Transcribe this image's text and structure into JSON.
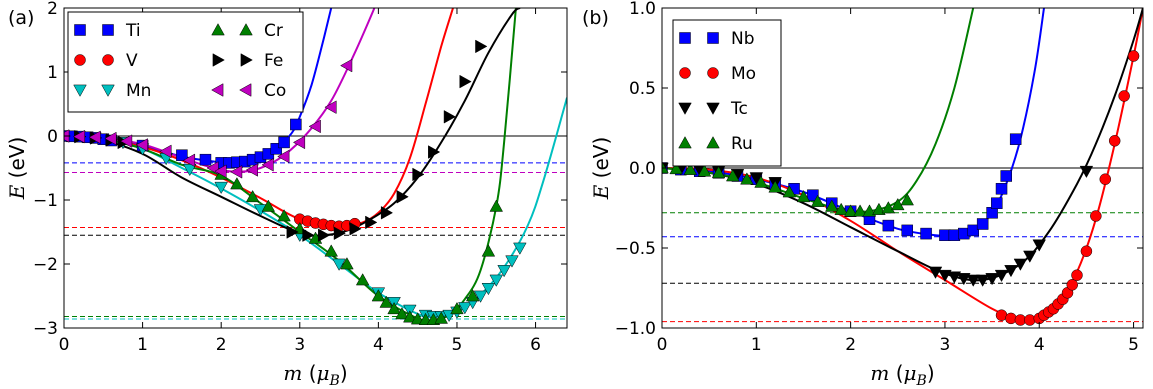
{
  "chart_data": [
    {
      "panel_label": "(a)",
      "type": "scatter",
      "xlabel": "m (μ_B)",
      "ylabel": "E (eV)",
      "xlim": [
        0,
        6.4
      ],
      "ylim": [
        -3,
        2
      ],
      "xticks": [
        0,
        1,
        2,
        3,
        4,
        5,
        6
      ],
      "yticks": [
        -3,
        -2,
        -1,
        0,
        1,
        2
      ],
      "grid": false,
      "legend_position": "top-left",
      "zero_line": true,
      "series": [
        {
          "name": "Ti",
          "color": "#0000ff",
          "marker": "square",
          "x": [
            0.0,
            0.1,
            0.2,
            0.3,
            0.4,
            0.5,
            0.6,
            1.0,
            1.5,
            1.8,
            2.0,
            2.1,
            2.2,
            2.3,
            2.4,
            2.5,
            2.6,
            2.7,
            2.8,
            2.95
          ],
          "y": [
            0.0,
            -0.005,
            -0.01,
            -0.02,
            -0.03,
            -0.05,
            -0.07,
            -0.15,
            -0.3,
            -0.37,
            -0.42,
            -0.42,
            -0.41,
            -0.4,
            -0.37,
            -0.33,
            -0.28,
            -0.2,
            -0.1,
            0.18
          ],
          "fit_x": [
            0.0,
            0.5,
            1.0,
            1.5,
            1.8,
            2.1,
            2.4,
            2.7,
            2.9,
            3.0,
            3.15,
            3.3,
            3.4
          ],
          "fit_y": [
            0.0,
            -0.04,
            -0.15,
            -0.32,
            -0.38,
            -0.42,
            -0.37,
            -0.2,
            0.05,
            0.3,
            0.8,
            1.5,
            2.0
          ],
          "ref_energy": -0.42
        },
        {
          "name": "V",
          "color": "#ff0000",
          "marker": "circle",
          "x": [
            3.0,
            3.1,
            3.2,
            3.3,
            3.4,
            3.5,
            3.6,
            3.7
          ],
          "y": [
            -1.3,
            -1.33,
            -1.36,
            -1.38,
            -1.4,
            -1.41,
            -1.4,
            -1.37
          ],
          "fit_x": [
            0.0,
            0.5,
            1.0,
            1.5,
            2.0,
            2.5,
            3.0,
            3.5,
            3.8,
            4.0,
            4.2,
            4.4,
            4.6,
            4.8,
            4.95
          ],
          "fit_y": [
            0.0,
            -0.04,
            -0.17,
            -0.38,
            -0.65,
            -0.97,
            -1.3,
            -1.42,
            -1.35,
            -1.2,
            -0.9,
            -0.35,
            0.5,
            1.4,
            2.0
          ],
          "ref_energy": -1.43
        },
        {
          "name": "Mn",
          "color": "#00bfbf",
          "marker": "triangle-down",
          "x": [
            0.75,
            1.0,
            1.3,
            1.6,
            2.0,
            2.5,
            3.0,
            3.5,
            4.0,
            4.2,
            4.4,
            4.6,
            4.7,
            4.8,
            4.9,
            5.0,
            5.1,
            5.2,
            5.3,
            5.4,
            5.5,
            5.6,
            5.7,
            5.8
          ],
          "y": [
            -0.1,
            -0.2,
            -0.35,
            -0.52,
            -0.8,
            -1.15,
            -1.55,
            -2.0,
            -2.45,
            -2.6,
            -2.72,
            -2.8,
            -2.82,
            -2.82,
            -2.8,
            -2.75,
            -2.68,
            -2.6,
            -2.5,
            -2.38,
            -2.25,
            -2.1,
            -1.95,
            -1.75
          ],
          "fit_x": [
            0.0,
            0.5,
            1.0,
            1.5,
            2.0,
            2.5,
            3.0,
            3.5,
            4.0,
            4.5,
            4.7,
            5.0,
            5.3,
            5.6,
            5.9,
            6.1,
            6.4
          ],
          "fit_y": [
            0.0,
            -0.05,
            -0.2,
            -0.5,
            -0.82,
            -1.17,
            -1.55,
            -2.0,
            -2.45,
            -2.78,
            -2.83,
            -2.75,
            -2.48,
            -2.05,
            -1.4,
            -0.7,
            0.6
          ],
          "ref_energy": -2.86
        },
        {
          "name": "Cr",
          "color": "#007f00",
          "marker": "triangle-up",
          "x": [
            2.0,
            2.2,
            2.4,
            2.6,
            2.8,
            3.0,
            3.2,
            3.4,
            3.6,
            3.8,
            4.0,
            4.1,
            4.2,
            4.3,
            4.4,
            4.5,
            4.6,
            4.7,
            4.8,
            5.0,
            5.2,
            5.4,
            5.5
          ],
          "y": [
            -0.6,
            -0.75,
            -0.95,
            -1.1,
            -1.25,
            -1.45,
            -1.6,
            -1.8,
            -2.0,
            -2.25,
            -2.5,
            -2.6,
            -2.7,
            -2.78,
            -2.83,
            -2.86,
            -2.87,
            -2.87,
            -2.85,
            -2.7,
            -2.5,
            -1.8,
            -1.1
          ],
          "fit_x": [
            0.0,
            0.5,
            1.0,
            1.5,
            2.0,
            2.5,
            3.0,
            3.5,
            4.0,
            4.5,
            4.7,
            4.9,
            5.1,
            5.3,
            5.5,
            5.6,
            5.75
          ],
          "fit_y": [
            0.0,
            -0.05,
            -0.2,
            -0.45,
            -0.62,
            -1.05,
            -1.5,
            -1.95,
            -2.5,
            -2.85,
            -2.87,
            -2.8,
            -2.55,
            -2.1,
            -1.1,
            -0.1,
            2.0
          ],
          "ref_energy": -2.82
        },
        {
          "name": "Fe",
          "color": "#000000",
          "marker": "triangle-right",
          "x": [
            0.0,
            0.2,
            0.4,
            0.6,
            0.75,
            2.9,
            3.1,
            3.3,
            3.5,
            3.7,
            3.9,
            4.1,
            4.3,
            4.5,
            4.7,
            4.9,
            5.1,
            5.3
          ],
          "y": [
            0.0,
            -0.01,
            -0.03,
            -0.06,
            -0.1,
            -1.5,
            -1.55,
            -1.55,
            -1.52,
            -1.45,
            -1.35,
            -1.2,
            -0.95,
            -0.6,
            -0.25,
            0.3,
            0.85,
            1.4
          ],
          "fit_x": [
            0.0,
            0.5,
            1.0,
            1.5,
            2.0,
            2.5,
            3.0,
            3.3,
            3.6,
            3.9,
            4.2,
            4.5,
            4.8,
            5.1,
            5.4,
            5.7,
            5.8
          ],
          "fit_y": [
            0.0,
            -0.07,
            -0.28,
            -0.65,
            -0.95,
            -1.25,
            -1.52,
            -1.55,
            -1.48,
            -1.3,
            -1.05,
            -0.65,
            -0.1,
            0.55,
            1.3,
            1.9,
            2.0
          ],
          "ref_energy": -1.55
        },
        {
          "name": "Co",
          "color": "#bf00bf",
          "marker": "triangle-left",
          "x": [
            0.0,
            0.2,
            0.4,
            0.6,
            0.8,
            1.0,
            1.3,
            1.6,
            1.9,
            2.0,
            2.2,
            2.4,
            2.6,
            2.8,
            3.0,
            3.2,
            3.4,
            3.6
          ],
          "y": [
            0.0,
            -0.01,
            -0.02,
            -0.04,
            -0.08,
            -0.14,
            -0.24,
            -0.38,
            -0.5,
            -0.55,
            -0.56,
            -0.53,
            -0.45,
            -0.32,
            -0.1,
            0.15,
            0.45,
            1.1
          ],
          "fit_x": [
            0.0,
            0.5,
            1.0,
            1.5,
            1.9,
            2.2,
            2.5,
            2.8,
            3.1,
            3.4,
            3.7,
            3.95
          ],
          "fit_y": [
            0.0,
            -0.03,
            -0.13,
            -0.34,
            -0.5,
            -0.56,
            -0.5,
            -0.3,
            0.05,
            0.55,
            1.3,
            2.0
          ],
          "ref_energy": -0.57
        }
      ]
    },
    {
      "panel_label": "(b)",
      "type": "scatter",
      "xlabel": "m (μ_B)",
      "ylabel": "E (eV)",
      "xlim": [
        0,
        5.1
      ],
      "ylim": [
        -1.0,
        1.0
      ],
      "xticks": [
        0,
        1,
        2,
        3,
        4,
        5
      ],
      "yticks": [
        -1.0,
        -0.5,
        0.0,
        0.5,
        1.0
      ],
      "grid": false,
      "legend_position": "top-left",
      "zero_line": true,
      "series": [
        {
          "name": "Nb",
          "color": "#0000ff",
          "marker": "square",
          "x": [
            0.0,
            0.2,
            0.4,
            0.6,
            0.8,
            1.0,
            1.2,
            1.4,
            1.6,
            1.8,
            2.0,
            2.2,
            2.4,
            2.6,
            2.8,
            3.0,
            3.1,
            3.2,
            3.3,
            3.4,
            3.5,
            3.55,
            3.6,
            3.65,
            3.75
          ],
          "y": [
            0.0,
            -0.01,
            -0.02,
            -0.03,
            -0.05,
            -0.07,
            -0.1,
            -0.13,
            -0.17,
            -0.22,
            -0.27,
            -0.32,
            -0.36,
            -0.39,
            -0.41,
            -0.42,
            -0.42,
            -0.41,
            -0.39,
            -0.35,
            -0.28,
            -0.22,
            -0.13,
            -0.05,
            0.18
          ],
          "fit_x": [
            0.0,
            0.5,
            1.0,
            1.5,
            2.0,
            2.5,
            2.9,
            3.1,
            3.3,
            3.5,
            3.65,
            3.8,
            3.95,
            4.05
          ],
          "fit_y": [
            0.0,
            -0.02,
            -0.07,
            -0.15,
            -0.27,
            -0.38,
            -0.42,
            -0.42,
            -0.39,
            -0.28,
            -0.1,
            0.18,
            0.6,
            1.0
          ],
          "ref_energy": -0.43
        },
        {
          "name": "Mo",
          "color": "#ff0000",
          "marker": "circle",
          "x": [
            3.6,
            3.7,
            3.8,
            3.9,
            4.0,
            4.05,
            4.1,
            4.15,
            4.2,
            4.25,
            4.3,
            4.35,
            4.4,
            4.5,
            4.6,
            4.7,
            4.8,
            4.9,
            5.0
          ],
          "y": [
            -0.92,
            -0.94,
            -0.95,
            -0.95,
            -0.94,
            -0.92,
            -0.9,
            -0.88,
            -0.85,
            -0.82,
            -0.78,
            -0.73,
            -0.67,
            -0.52,
            -0.3,
            -0.07,
            0.17,
            0.45,
            0.7
          ],
          "fit_x": [
            0.0,
            0.5,
            1.0,
            1.5,
            2.0,
            2.5,
            3.0,
            3.5,
            3.8,
            4.0,
            4.2,
            4.4,
            4.6,
            4.8,
            5.0,
            5.1
          ],
          "fit_y": [
            0.0,
            -0.01,
            -0.06,
            -0.17,
            -0.33,
            -0.52,
            -0.7,
            -0.88,
            -0.95,
            -0.94,
            -0.85,
            -0.65,
            -0.32,
            0.15,
            0.7,
            1.0
          ],
          "ref_energy": -0.96
        },
        {
          "name": "Tc",
          "color": "#000000",
          "marker": "triangle-down",
          "x": [
            0.0,
            0.2,
            0.4,
            0.6,
            0.8,
            1.0,
            1.2,
            2.9,
            3.0,
            3.1,
            3.2,
            3.3,
            3.4,
            3.5,
            3.6,
            3.7,
            3.8,
            3.9,
            4.0,
            4.5
          ],
          "y": [
            0.0,
            -0.005,
            -0.01,
            -0.02,
            -0.04,
            -0.06,
            -0.09,
            -0.65,
            -0.67,
            -0.68,
            -0.69,
            -0.7,
            -0.7,
            -0.69,
            -0.67,
            -0.64,
            -0.6,
            -0.55,
            -0.48,
            -0.02
          ],
          "fit_x": [
            0.0,
            0.5,
            1.0,
            1.5,
            2.0,
            2.5,
            3.0,
            3.4,
            3.8,
            4.1,
            4.4,
            4.6,
            4.8,
            5.0,
            5.1
          ],
          "fit_y": [
            0.0,
            -0.03,
            -0.1,
            -0.22,
            -0.37,
            -0.52,
            -0.66,
            -0.7,
            -0.6,
            -0.4,
            -0.1,
            0.15,
            0.45,
            0.8,
            1.0
          ],
          "ref_energy": -0.72
        },
        {
          "name": "Ru",
          "color": "#007f00",
          "marker": "triangle-up",
          "x": [
            0.0,
            0.15,
            0.3,
            0.45,
            0.6,
            0.75,
            0.9,
            1.05,
            1.2,
            1.35,
            1.5,
            1.65,
            1.8,
            1.9,
            2.0,
            2.1,
            2.2,
            2.3,
            2.4,
            2.5,
            2.6
          ],
          "y": [
            0.0,
            -0.005,
            -0.01,
            -0.02,
            -0.03,
            -0.05,
            -0.07,
            -0.09,
            -0.12,
            -0.15,
            -0.18,
            -0.21,
            -0.24,
            -0.26,
            -0.27,
            -0.27,
            -0.27,
            -0.26,
            -0.25,
            -0.23,
            -0.2
          ],
          "fit_x": [
            0.0,
            0.5,
            1.0,
            1.5,
            1.9,
            2.2,
            2.5,
            2.7,
            2.9,
            3.1,
            3.3
          ],
          "fit_y": [
            0.0,
            -0.03,
            -0.09,
            -0.19,
            -0.26,
            -0.27,
            -0.21,
            -0.08,
            0.15,
            0.5,
            1.0
          ],
          "ref_energy": -0.28
        }
      ]
    }
  ]
}
